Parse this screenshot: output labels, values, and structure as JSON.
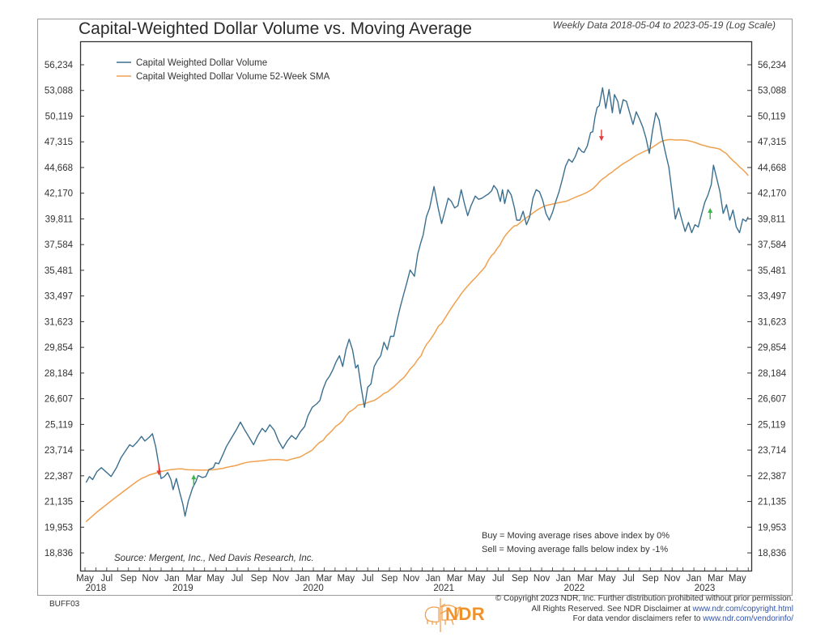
{
  "header": {
    "title": "Capital-Weighted Dollar Volume vs. Moving Average",
    "subtitle": "Weekly Data 2018-05-04 to 2023-05-19 (Log Scale)"
  },
  "footer": {
    "code": "BUFF03",
    "copyright_line1": "© Copyright 2023 NDR, Inc. Further distribution prohibited without prior permission.",
    "copyright_line2_text": "All Rights Reserved. See NDR Disclaimer at ",
    "copyright_line2_link": "www.ndr.com/copyright.html",
    "copyright_line3_text": "For data vendor disclaimers refer to ",
    "copyright_line3_link": "www.ndr.com/vendorinfo/",
    "logo_text": "NDR"
  },
  "colors": {
    "index_line": "#3b6f8f",
    "sma_line": "#f0a150",
    "buy_arrow": "#3ab54a",
    "sell_arrow": "#e23b3b",
    "link": "#3355aa",
    "brand": "#f0922b"
  },
  "chart_data": {
    "type": "line",
    "title": "Capital-Weighted Dollar Volume vs. Moving Average",
    "subtitle": "Weekly Data 2018-05-04 to 2023-05-19 (Log Scale)",
    "yscale": "log",
    "ylim": [
      18000,
      57500
    ],
    "xlim": [
      "2018-05",
      "2023-06"
    ],
    "y_ticks": [
      "56,234",
      "53,088",
      "50,119",
      "47,315",
      "44,668",
      "42,170",
      "39,811",
      "37,584",
      "35,481",
      "33,497",
      "31,623",
      "29,854",
      "28,184",
      "26,607",
      "25,119",
      "23,714",
      "22,387",
      "21,135",
      "19,953",
      "18,836"
    ],
    "y_tick_values": [
      56234,
      53088,
      50119,
      47315,
      44668,
      42170,
      39811,
      37584,
      35481,
      33497,
      31623,
      29854,
      28184,
      26607,
      25119,
      23714,
      22387,
      21135,
      19953,
      18836
    ],
    "x_ticks": [
      {
        "label": "May",
        "m": 0
      },
      {
        "label": "Jul",
        "m": 2
      },
      {
        "label": "Sep",
        "m": 4
      },
      {
        "label": "Nov",
        "m": 6
      },
      {
        "label": "Jan",
        "m": 8
      },
      {
        "label": "Mar",
        "m": 10
      },
      {
        "label": "May",
        "m": 12
      },
      {
        "label": "Jul",
        "m": 14
      },
      {
        "label": "Sep",
        "m": 16
      },
      {
        "label": "Nov",
        "m": 18
      },
      {
        "label": "Jan",
        "m": 20
      },
      {
        "label": "Mar",
        "m": 22
      },
      {
        "label": "May",
        "m": 24
      },
      {
        "label": "Jul",
        "m": 26
      },
      {
        "label": "Sep",
        "m": 28
      },
      {
        "label": "Nov",
        "m": 30
      },
      {
        "label": "Jan",
        "m": 32
      },
      {
        "label": "Mar",
        "m": 34
      },
      {
        "label": "May",
        "m": 36
      },
      {
        "label": "Jul",
        "m": 38
      },
      {
        "label": "Sep",
        "m": 40
      },
      {
        "label": "Nov",
        "m": 42
      },
      {
        "label": "Jan",
        "m": 44
      },
      {
        "label": "Mar",
        "m": 46
      },
      {
        "label": "May",
        "m": 48
      },
      {
        "label": "Jul",
        "m": 50
      },
      {
        "label": "Sep",
        "m": 52
      },
      {
        "label": "Nov",
        "m": 54
      },
      {
        "label": "Jan",
        "m": 56
      },
      {
        "label": "Mar",
        "m": 58
      },
      {
        "label": "May",
        "m": 60
      }
    ],
    "year_labels": [
      {
        "label": "2018",
        "m": 1
      },
      {
        "label": "2019",
        "m": 9
      },
      {
        "label": "2020",
        "m": 21
      },
      {
        "label": "2021",
        "m": 33
      },
      {
        "label": "2022",
        "m": 45
      },
      {
        "label": "2023",
        "m": 57
      }
    ],
    "legend": {
      "position": "top-left",
      "entries": [
        "Capital Weighted Dollar Volume",
        "Capital Weighted Dollar Volume 52-Week SMA"
      ]
    },
    "annotations": {
      "source": "Source:  Mergent, Inc., Ned Davis Research, Inc.",
      "buy_rule": "Buy = Moving average rises above index by 0%",
      "sell_rule": "Sell = Moving average falls below index by -1%"
    },
    "x_unit": "months since 2018-05",
    "series": [
      {
        "name": "Capital Weighted Dollar Volume",
        "points": [
          [
            0.1,
            22050
          ],
          [
            0.4,
            22350
          ],
          [
            0.7,
            22200
          ],
          [
            1.1,
            22600
          ],
          [
            1.5,
            22800
          ],
          [
            2.0,
            22550
          ],
          [
            2.4,
            22350
          ],
          [
            2.9,
            22800
          ],
          [
            3.3,
            23300
          ],
          [
            3.7,
            23650
          ],
          [
            4.1,
            24000
          ],
          [
            4.4,
            23900
          ],
          [
            4.8,
            24150
          ],
          [
            5.2,
            24450
          ],
          [
            5.5,
            24200
          ],
          [
            5.9,
            24400
          ],
          [
            6.2,
            24600
          ],
          [
            6.5,
            23900
          ],
          [
            6.8,
            22900
          ],
          [
            7.0,
            22250
          ],
          [
            7.3,
            22350
          ],
          [
            7.6,
            22550
          ],
          [
            7.9,
            22200
          ],
          [
            8.1,
            21700
          ],
          [
            8.4,
            22250
          ],
          [
            8.7,
            21600
          ],
          [
            9.0,
            21000
          ],
          [
            9.2,
            20450
          ],
          [
            9.5,
            21150
          ],
          [
            9.9,
            21800
          ],
          [
            10.2,
            22100
          ],
          [
            10.4,
            22400
          ],
          [
            10.8,
            22300
          ],
          [
            11.1,
            22350
          ],
          [
            11.4,
            22700
          ],
          [
            11.8,
            22800
          ],
          [
            12.0,
            23050
          ],
          [
            12.3,
            23000
          ],
          [
            12.7,
            23500
          ],
          [
            13.0,
            23900
          ],
          [
            13.4,
            24300
          ],
          [
            13.9,
            24800
          ],
          [
            14.3,
            25250
          ],
          [
            14.7,
            24800
          ],
          [
            15.1,
            24400
          ],
          [
            15.5,
            24000
          ],
          [
            15.9,
            24500
          ],
          [
            16.3,
            24900
          ],
          [
            16.6,
            24700
          ],
          [
            17.0,
            25100
          ],
          [
            17.4,
            24800
          ],
          [
            17.8,
            24200
          ],
          [
            18.2,
            23800
          ],
          [
            18.6,
            24200
          ],
          [
            19.0,
            24500
          ],
          [
            19.4,
            24300
          ],
          [
            19.8,
            24700
          ],
          [
            20.2,
            25000
          ],
          [
            20.5,
            25600
          ],
          [
            20.9,
            26100
          ],
          [
            21.3,
            26300
          ],
          [
            21.6,
            26500
          ],
          [
            21.9,
            27200
          ],
          [
            22.2,
            27700
          ],
          [
            22.5,
            28000
          ],
          [
            22.8,
            28400
          ],
          [
            23.1,
            28900
          ],
          [
            23.4,
            29300
          ],
          [
            23.7,
            28600
          ],
          [
            24.0,
            29700
          ],
          [
            24.3,
            30400
          ],
          [
            24.6,
            29700
          ],
          [
            24.9,
            28500
          ],
          [
            25.1,
            28700
          ],
          [
            25.4,
            27300
          ],
          [
            25.7,
            26100
          ],
          [
            26.0,
            27300
          ],
          [
            26.3,
            27500
          ],
          [
            26.6,
            28600
          ],
          [
            26.9,
            29000
          ],
          [
            27.2,
            29300
          ],
          [
            27.5,
            30200
          ],
          [
            27.8,
            29700
          ],
          [
            28.1,
            30600
          ],
          [
            28.4,
            30600
          ],
          [
            28.7,
            31700
          ],
          [
            29.0,
            32700
          ],
          [
            29.3,
            33600
          ],
          [
            29.6,
            34500
          ],
          [
            29.9,
            35500
          ],
          [
            30.3,
            35000
          ],
          [
            30.6,
            36800
          ],
          [
            30.9,
            37800
          ],
          [
            31.1,
            38400
          ],
          [
            31.4,
            40000
          ],
          [
            31.7,
            40800
          ],
          [
            32.1,
            42800
          ],
          [
            32.5,
            40700
          ],
          [
            32.8,
            39400
          ],
          [
            33.1,
            40500
          ],
          [
            33.4,
            41700
          ],
          [
            33.7,
            41400
          ],
          [
            34.0,
            40800
          ],
          [
            34.3,
            41000
          ],
          [
            34.6,
            42500
          ],
          [
            34.9,
            41200
          ],
          [
            35.2,
            40100
          ],
          [
            35.5,
            41000
          ],
          [
            35.9,
            41900
          ],
          [
            36.2,
            41600
          ],
          [
            36.5,
            41700
          ],
          [
            36.8,
            41900
          ],
          [
            37.1,
            42100
          ],
          [
            37.4,
            42400
          ],
          [
            37.6,
            42900
          ],
          [
            37.9,
            42500
          ],
          [
            38.2,
            41400
          ],
          [
            38.4,
            42500
          ],
          [
            38.6,
            41200
          ],
          [
            38.9,
            42500
          ],
          [
            39.2,
            42000
          ],
          [
            39.5,
            40800
          ],
          [
            39.7,
            39700
          ],
          [
            40.0,
            39700
          ],
          [
            40.3,
            40500
          ],
          [
            40.6,
            39300
          ],
          [
            40.9,
            40000
          ],
          [
            41.2,
            41700
          ],
          [
            41.5,
            42500
          ],
          [
            41.8,
            42300
          ],
          [
            42.1,
            41500
          ],
          [
            42.4,
            40300
          ],
          [
            42.7,
            39700
          ],
          [
            43.0,
            40400
          ],
          [
            43.3,
            41400
          ],
          [
            43.6,
            42300
          ],
          [
            43.9,
            43500
          ],
          [
            44.2,
            44800
          ],
          [
            44.5,
            45500
          ],
          [
            44.8,
            45200
          ],
          [
            45.1,
            45800
          ],
          [
            45.4,
            46700
          ],
          [
            45.7,
            46300
          ],
          [
            45.9,
            46200
          ],
          [
            46.2,
            46900
          ],
          [
            46.5,
            48300
          ],
          [
            46.7,
            48400
          ],
          [
            46.9,
            50000
          ],
          [
            47.1,
            51100
          ],
          [
            47.3,
            51300
          ],
          [
            47.6,
            53400
          ],
          [
            47.9,
            51000
          ],
          [
            48.2,
            53200
          ],
          [
            48.5,
            50500
          ],
          [
            48.7,
            52600
          ],
          [
            49.0,
            51800
          ],
          [
            49.2,
            50400
          ],
          [
            49.5,
            52000
          ],
          [
            49.8,
            51800
          ],
          [
            50.1,
            50500
          ],
          [
            50.4,
            49200
          ],
          [
            50.7,
            50600
          ],
          [
            51.0,
            49800
          ],
          [
            51.3,
            48900
          ],
          [
            51.6,
            47700
          ],
          [
            51.9,
            46100
          ],
          [
            52.2,
            48500
          ],
          [
            52.5,
            50500
          ],
          [
            52.8,
            49700
          ],
          [
            53.1,
            47700
          ],
          [
            53.4,
            46100
          ],
          [
            53.7,
            44700
          ],
          [
            54.0,
            42200
          ],
          [
            54.3,
            39800
          ],
          [
            54.6,
            40800
          ],
          [
            54.9,
            39700
          ],
          [
            55.2,
            38700
          ],
          [
            55.5,
            39500
          ],
          [
            55.8,
            38600
          ],
          [
            56.1,
            39300
          ],
          [
            56.4,
            39100
          ],
          [
            56.7,
            40200
          ],
          [
            57.0,
            41300
          ],
          [
            57.3,
            42000
          ],
          [
            57.6,
            43000
          ],
          [
            57.8,
            44900
          ],
          [
            58.1,
            43600
          ],
          [
            58.4,
            42300
          ],
          [
            58.7,
            40300
          ],
          [
            59.0,
            41100
          ],
          [
            59.3,
            39700
          ],
          [
            59.6,
            40600
          ],
          [
            59.9,
            39100
          ],
          [
            60.2,
            38600
          ],
          [
            60.5,
            39800
          ],
          [
            60.8,
            39600
          ],
          [
            61.0,
            40000
          ]
        ]
      },
      {
        "name": "Capital Weighted Dollar Volume 52-Week SMA",
        "points": []
      }
    ],
    "signals": [
      {
        "type": "sell",
        "m": 6.8,
        "value": 22400
      },
      {
        "type": "buy",
        "m": 10.0,
        "value": 22450
      },
      {
        "type": "sell",
        "m": 47.5,
        "value": 47400
      },
      {
        "type": "buy",
        "m": 57.5,
        "value": 40800
      }
    ]
  }
}
